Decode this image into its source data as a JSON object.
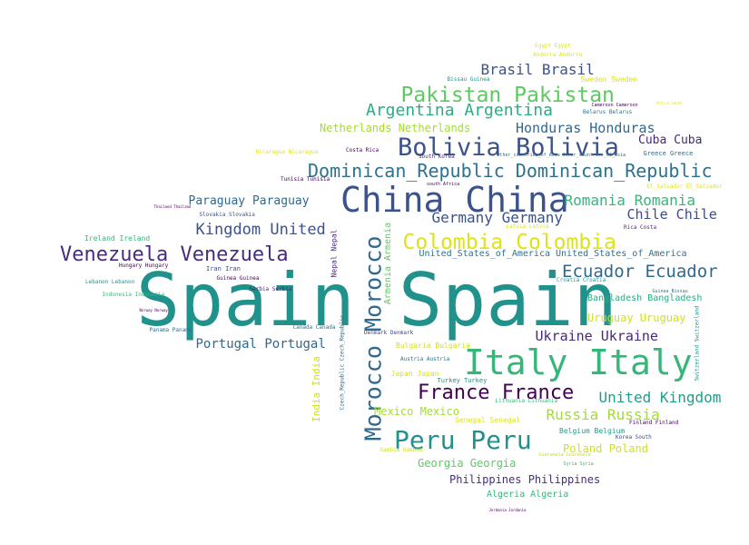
{
  "chart_data": {
    "type": "wordcloud",
    "words": [
      {
        "text": "Spain Spain",
        "color": "#21918c"
      },
      {
        "text": "China China",
        "color": "#3b528b"
      },
      {
        "text": "Italy Italy",
        "color": "#35b779"
      },
      {
        "text": "Morocco Morocco",
        "color": "#31688e"
      },
      {
        "text": "Peru Peru",
        "color": "#21918c"
      },
      {
        "text": "Venezuela Venezuela",
        "color": "#472d7b"
      },
      {
        "text": "Bolivia Bolivia",
        "color": "#3b528b"
      },
      {
        "text": "Pakistan Pakistan",
        "color": "#5ec962"
      },
      {
        "text": "Dominican_Republic Dominican_Republic",
        "color": "#2c728e"
      },
      {
        "text": "France France",
        "color": "#440154"
      },
      {
        "text": "Colombia Colombia",
        "color": "#dde318"
      },
      {
        "text": "Argentina Argentina",
        "color": "#28ae80"
      },
      {
        "text": "Ecuador Ecuador",
        "color": "#31688e"
      },
      {
        "text": "Kingdom United",
        "color": "#3b528b"
      },
      {
        "text": "Brasil Brasil",
        "color": "#3b528b"
      },
      {
        "text": "United Kingdom",
        "color": "#1f9e89"
      },
      {
        "text": "Germany Germany",
        "color": "#3b528b"
      },
      {
        "text": "Romania Romania",
        "color": "#35b779"
      },
      {
        "text": "Honduras Honduras",
        "color": "#31688e"
      },
      {
        "text": "Ukraine Ukraine",
        "color": "#482878"
      },
      {
        "text": "Russia Russia",
        "color": "#a5db36"
      },
      {
        "text": "Chile Chile",
        "color": "#3e4989"
      },
      {
        "text": "Portugal Portugal",
        "color": "#31688e"
      },
      {
        "text": "Cuba Cuba",
        "color": "#482878"
      },
      {
        "text": "Paraguay Paraguay",
        "color": "#31688e"
      },
      {
        "text": "Georgia Georgia",
        "color": "#5ec962"
      },
      {
        "text": "Philippines Philippines",
        "color": "#472d7b"
      },
      {
        "text": "Netherlands Netherlands",
        "color": "#a5db36"
      },
      {
        "text": "Uruguay Uruguay",
        "color": "#d0e11c"
      },
      {
        "text": "Poland Poland",
        "color": "#d0e11c"
      },
      {
        "text": "Mexico Mexico",
        "color": "#a5db36"
      },
      {
        "text": "India India",
        "color": "#d0e11c"
      },
      {
        "text": "Armenia Armenia",
        "color": "#5ec962"
      },
      {
        "text": "United_States_of_America United_States_of_America",
        "color": "#2c728e"
      },
      {
        "text": "Bangladesh Bangladesh",
        "color": "#28ae80"
      },
      {
        "text": "Algeria Algeria",
        "color": "#35b779"
      },
      {
        "text": "Ireland Ireland",
        "color": "#35b779"
      },
      {
        "text": "Nepal Nepal",
        "color": "#482878"
      },
      {
        "text": "Sweden Sweden",
        "color": "#dde318"
      },
      {
        "text": "Bulgaria Bulgaria",
        "color": "#d0e11c"
      },
      {
        "text": "Japan Japan",
        "color": "#dde318"
      },
      {
        "text": "Senegal Senegal",
        "color": "#dde318"
      },
      {
        "text": "Belgium Belgium",
        "color": "#1f9e89"
      },
      {
        "text": "Turkey Turkey",
        "color": "#21918c"
      },
      {
        "text": "Greece Greece",
        "color": "#31688e"
      },
      {
        "text": "Lithuania Lithuania",
        "color": "#35b779"
      },
      {
        "text": "Egypt Egypt",
        "color": "#dde318"
      },
      {
        "text": "Andorra Andorra",
        "color": "#dde318"
      },
      {
        "text": "Bissau Guinea",
        "color": "#21918c"
      },
      {
        "text": "Cameroon Cameroon",
        "color": "#440154"
      },
      {
        "text": "Belarus Belarus",
        "color": "#2c728e"
      },
      {
        "text": "Africa South",
        "color": "#dde318"
      },
      {
        "text": "Nicaragua Nicaragua",
        "color": "#dde318"
      },
      {
        "text": "Costa Rica",
        "color": "#440154"
      },
      {
        "text": "South Korea",
        "color": "#482878"
      },
      {
        "text": "Other_countries_of_Asia Other_countries_of_Asia",
        "color": "#31688e"
      },
      {
        "text": "El_Salvador El_Salvador",
        "color": "#dde318"
      },
      {
        "text": "Tunisia Tunisia",
        "color": "#440154"
      },
      {
        "text": "south Africa",
        "color": "#440154"
      },
      {
        "text": "Thailand Thailand",
        "color": "#440154"
      },
      {
        "text": "Slovakia Slovakia",
        "color": "#3b528b"
      },
      {
        "text": "Latvia Latvia",
        "color": "#dde318"
      },
      {
        "text": "Rica Costa",
        "color": "#472d7b"
      },
      {
        "text": "Hungary Hungary",
        "color": "#440154"
      },
      {
        "text": "Iran Iran",
        "color": "#3e4989"
      },
      {
        "text": "Serbia Serbia",
        "color": "#482878"
      },
      {
        "text": "Guinea Guinea",
        "color": "#440154"
      },
      {
        "text": "Lebanon Lebanon",
        "color": "#21918c"
      },
      {
        "text": "Indonesia Indonesia",
        "color": "#35b779"
      },
      {
        "text": "Norway Norway",
        "color": "#440154"
      },
      {
        "text": "Panama Panama",
        "color": "#2c728e"
      },
      {
        "text": "Canada Canada",
        "color": "#2c728e"
      },
      {
        "text": "Czech_Republic Czech_Republic",
        "color": "#31688e"
      },
      {
        "text": "Denmark Denmark",
        "color": "#3e4989"
      },
      {
        "text": "Austria Austria",
        "color": "#2c728e"
      },
      {
        "text": "Croatia Croatia",
        "color": "#1f9e89"
      },
      {
        "text": "Guinea Bissau",
        "color": "#2c728e"
      },
      {
        "text": "Switzerland Switzerland",
        "color": "#21918c"
      },
      {
        "text": "Finland Finland",
        "color": "#440154"
      },
      {
        "text": "Korea South",
        "color": "#3e4989"
      },
      {
        "text": "Gambia Gambia",
        "color": "#d0e11c"
      },
      {
        "text": "Guatemala Guatemala",
        "color": "#d0e11c"
      },
      {
        "text": "Syria Syria",
        "color": "#35b779"
      },
      {
        "text": "Jordania Jordania",
        "color": "#440154"
      }
    ]
  }
}
